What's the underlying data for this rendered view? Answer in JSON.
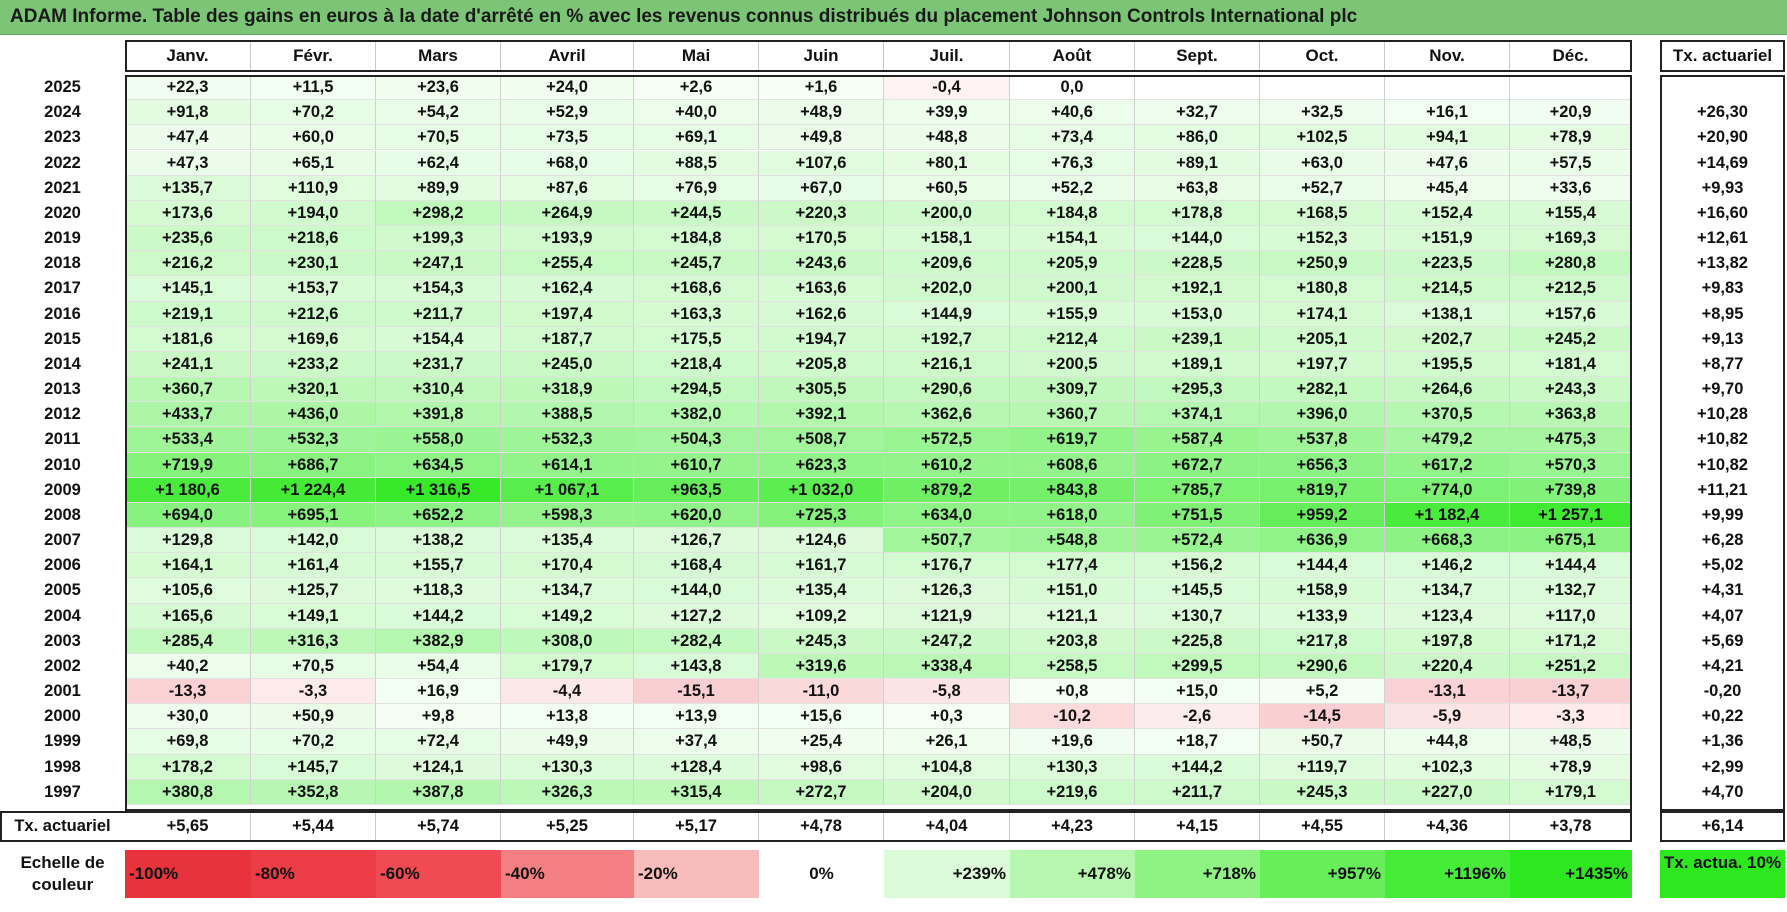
{
  "title": "ADAM Informe. Table des gains en euros à la date d'arrêté en % avec les revenus connus distribués du placement Johnson Controls International plc",
  "months": [
    "Janv.",
    "Févr.",
    "Mars",
    "Avril",
    "Mai",
    "Juin",
    "Juil.",
    "Août",
    "Sept.",
    "Oct.",
    "Nov.",
    "Déc."
  ],
  "tx_header": "Tx. actuariel",
  "rows": [
    {
      "year": "2025",
      "values": [
        "+22,3",
        "+11,5",
        "+23,6",
        "+24,0",
        "+2,6",
        "+1,6",
        "-0,4",
        "0,0",
        "",
        "",
        "",
        ""
      ],
      "tx": ""
    },
    {
      "year": "2024",
      "values": [
        "+91,8",
        "+70,2",
        "+54,2",
        "+52,9",
        "+40,0",
        "+48,9",
        "+39,9",
        "+40,6",
        "+32,7",
        "+32,5",
        "+16,1",
        "+20,9"
      ],
      "tx": "+26,30"
    },
    {
      "year": "2023",
      "values": [
        "+47,4",
        "+60,0",
        "+70,5",
        "+73,5",
        "+69,1",
        "+49,8",
        "+48,8",
        "+73,4",
        "+86,0",
        "+102,5",
        "+94,1",
        "+78,9"
      ],
      "tx": "+20,90"
    },
    {
      "year": "2022",
      "values": [
        "+47,3",
        "+65,1",
        "+62,4",
        "+68,0",
        "+88,5",
        "+107,6",
        "+80,1",
        "+76,3",
        "+89,1",
        "+63,0",
        "+47,6",
        "+57,5"
      ],
      "tx": "+14,69"
    },
    {
      "year": "2021",
      "values": [
        "+135,7",
        "+110,9",
        "+89,9",
        "+87,6",
        "+76,9",
        "+67,0",
        "+60,5",
        "+52,2",
        "+63,8",
        "+52,7",
        "+45,4",
        "+33,6"
      ],
      "tx": "+9,93"
    },
    {
      "year": "2020",
      "values": [
        "+173,6",
        "+194,0",
        "+298,2",
        "+264,9",
        "+244,5",
        "+220,3",
        "+200,0",
        "+184,8",
        "+178,8",
        "+168,5",
        "+152,4",
        "+155,4"
      ],
      "tx": "+16,60"
    },
    {
      "year": "2019",
      "values": [
        "+235,6",
        "+218,6",
        "+199,3",
        "+193,9",
        "+184,8",
        "+170,5",
        "+158,1",
        "+154,1",
        "+144,0",
        "+152,3",
        "+151,9",
        "+169,3"
      ],
      "tx": "+12,61"
    },
    {
      "year": "2018",
      "values": [
        "+216,2",
        "+230,1",
        "+247,1",
        "+255,4",
        "+245,7",
        "+243,6",
        "+209,6",
        "+205,9",
        "+228,5",
        "+250,9",
        "+223,5",
        "+280,8"
      ],
      "tx": "+13,82"
    },
    {
      "year": "2017",
      "values": [
        "+145,1",
        "+153,7",
        "+154,3",
        "+162,4",
        "+168,6",
        "+163,6",
        "+202,0",
        "+200,1",
        "+192,1",
        "+180,8",
        "+214,5",
        "+212,5"
      ],
      "tx": "+9,83"
    },
    {
      "year": "2016",
      "values": [
        "+219,1",
        "+212,6",
        "+211,7",
        "+197,4",
        "+163,3",
        "+162,6",
        "+144,9",
        "+155,9",
        "+153,0",
        "+174,1",
        "+138,1",
        "+157,6"
      ],
      "tx": "+8,95"
    },
    {
      "year": "2015",
      "values": [
        "+181,6",
        "+169,6",
        "+154,4",
        "+187,7",
        "+175,5",
        "+194,7",
        "+192,7",
        "+212,4",
        "+239,1",
        "+205,1",
        "+202,7",
        "+245,2"
      ],
      "tx": "+9,13"
    },
    {
      "year": "2014",
      "values": [
        "+241,1",
        "+233,2",
        "+231,7",
        "+245,0",
        "+218,4",
        "+205,8",
        "+216,1",
        "+200,5",
        "+189,1",
        "+197,7",
        "+195,5",
        "+181,4"
      ],
      "tx": "+8,77"
    },
    {
      "year": "2013",
      "values": [
        "+360,7",
        "+320,1",
        "+310,4",
        "+318,9",
        "+294,5",
        "+305,5",
        "+290,6",
        "+309,7",
        "+295,3",
        "+282,1",
        "+264,6",
        "+243,3"
      ],
      "tx": "+9,70"
    },
    {
      "year": "2012",
      "values": [
        "+433,7",
        "+436,0",
        "+391,8",
        "+388,5",
        "+382,0",
        "+392,1",
        "+362,6",
        "+360,7",
        "+374,1",
        "+396,0",
        "+370,5",
        "+363,8"
      ],
      "tx": "+10,28"
    },
    {
      "year": "2011",
      "values": [
        "+533,4",
        "+532,3",
        "+558,0",
        "+532,3",
        "+504,3",
        "+508,7",
        "+572,5",
        "+619,7",
        "+587,4",
        "+537,8",
        "+479,2",
        "+475,3"
      ],
      "tx": "+10,82"
    },
    {
      "year": "2010",
      "values": [
        "+719,9",
        "+686,7",
        "+634,5",
        "+614,1",
        "+610,7",
        "+623,3",
        "+610,2",
        "+608,6",
        "+672,7",
        "+656,3",
        "+617,2",
        "+570,3"
      ],
      "tx": "+10,82"
    },
    {
      "year": "2009",
      "values": [
        "+1 180,6",
        "+1 224,4",
        "+1 316,5",
        "+1 067,1",
        "+963,5",
        "+1 032,0",
        "+879,2",
        "+843,8",
        "+785,7",
        "+819,7",
        "+774,0",
        "+739,8"
      ],
      "tx": "+11,21"
    },
    {
      "year": "2008",
      "values": [
        "+694,0",
        "+695,1",
        "+652,2",
        "+598,3",
        "+620,0",
        "+725,3",
        "+634,0",
        "+618,0",
        "+751,5",
        "+959,2",
        "+1 182,4",
        "+1 257,1"
      ],
      "tx": "+9,99"
    },
    {
      "year": "2007",
      "values": [
        "+129,8",
        "+142,0",
        "+138,2",
        "+135,4",
        "+126,7",
        "+124,6",
        "+507,7",
        "+548,8",
        "+572,4",
        "+636,9",
        "+668,3",
        "+675,1"
      ],
      "tx": "+6,28"
    },
    {
      "year": "2006",
      "values": [
        "+164,1",
        "+161,4",
        "+155,7",
        "+170,4",
        "+168,4",
        "+161,7",
        "+176,7",
        "+177,4",
        "+156,2",
        "+144,4",
        "+146,2",
        "+144,4"
      ],
      "tx": "+5,02"
    },
    {
      "year": "2005",
      "values": [
        "+105,6",
        "+125,7",
        "+118,3",
        "+134,7",
        "+144,0",
        "+135,4",
        "+126,3",
        "+151,0",
        "+145,5",
        "+158,9",
        "+134,7",
        "+132,7"
      ],
      "tx": "+4,31"
    },
    {
      "year": "2004",
      "values": [
        "+165,6",
        "+149,1",
        "+144,2",
        "+149,2",
        "+127,2",
        "+109,2",
        "+121,9",
        "+121,1",
        "+130,7",
        "+133,9",
        "+123,4",
        "+117,0"
      ],
      "tx": "+4,07"
    },
    {
      "year": "2003",
      "values": [
        "+285,4",
        "+316,3",
        "+382,9",
        "+308,0",
        "+282,4",
        "+245,3",
        "+247,2",
        "+203,8",
        "+225,8",
        "+217,8",
        "+197,8",
        "+171,2"
      ],
      "tx": "+5,69"
    },
    {
      "year": "2002",
      "values": [
        "+40,2",
        "+70,5",
        "+54,4",
        "+179,7",
        "+143,8",
        "+319,6",
        "+338,4",
        "+258,5",
        "+299,5",
        "+290,6",
        "+220,4",
        "+251,2"
      ],
      "tx": "+4,21"
    },
    {
      "year": "2001",
      "values": [
        "-13,3",
        "-3,3",
        "+16,9",
        "-4,4",
        "-15,1",
        "-11,0",
        "-5,8",
        "+0,8",
        "+15,0",
        "+5,2",
        "-13,1",
        "-13,7"
      ],
      "tx": "-0,20"
    },
    {
      "year": "2000",
      "values": [
        "+30,0",
        "+50,9",
        "+9,8",
        "+13,8",
        "+13,9",
        "+15,6",
        "+0,3",
        "-10,2",
        "-2,6",
        "-14,5",
        "-5,9",
        "-3,3"
      ],
      "tx": "+0,22"
    },
    {
      "year": "1999",
      "values": [
        "+69,8",
        "+70,2",
        "+72,4",
        "+49,9",
        "+37,4",
        "+25,4",
        "+26,1",
        "+19,6",
        "+18,7",
        "+50,7",
        "+44,8",
        "+48,5"
      ],
      "tx": "+1,36"
    },
    {
      "year": "1998",
      "values": [
        "+178,2",
        "+145,7",
        "+124,1",
        "+130,3",
        "+128,4",
        "+98,6",
        "+104,8",
        "+130,3",
        "+144,2",
        "+119,7",
        "+102,3",
        "+78,9"
      ],
      "tx": "+2,99"
    },
    {
      "year": "1997",
      "values": [
        "+380,8",
        "+352,8",
        "+387,8",
        "+326,3",
        "+315,4",
        "+272,7",
        "+204,0",
        "+219,6",
        "+211,7",
        "+245,3",
        "+227,0",
        "+179,1"
      ],
      "tx": "+4,70"
    }
  ],
  "footer": {
    "label": "Tx. actuariel",
    "values": [
      "+5,65",
      "+5,44",
      "+5,74",
      "+5,25",
      "+5,17",
      "+4,78",
      "+4,04",
      "+4,23",
      "+4,15",
      "+4,55",
      "+4,36",
      "+3,78"
    ],
    "tx": "+6,14"
  },
  "scale": {
    "label": "Echelle de couleur",
    "steps": [
      {
        "text": "-100%",
        "color": "#e8323c"
      },
      {
        "text": "-80%",
        "color": "#ec3c45"
      },
      {
        "text": "-60%",
        "color": "#f04a52"
      },
      {
        "text": "-40%",
        "color": "#f47f82"
      },
      {
        "text": "-20%",
        "color": "#f9bcbd"
      },
      {
        "text": "0%",
        "color": "#ffffff"
      },
      {
        "text": "+239%",
        "color": "#dcfbd8"
      },
      {
        "text": "+478%",
        "color": "#b6f6ae"
      },
      {
        "text": "+718%",
        "color": "#8ef383"
      },
      {
        "text": "+957%",
        "color": "#66ef59"
      },
      {
        "text": "+1196%",
        "color": "#45ec37"
      },
      {
        "text": "+1435%",
        "color": "#2ee81f"
      }
    ],
    "tx_label": "Tx. actua. 10%",
    "tx_color": "#2ee81f"
  },
  "colors": {
    "title_bg": "#7cc576",
    "positive_max": "#2ee81f",
    "negative_max": "#e8323c"
  }
}
